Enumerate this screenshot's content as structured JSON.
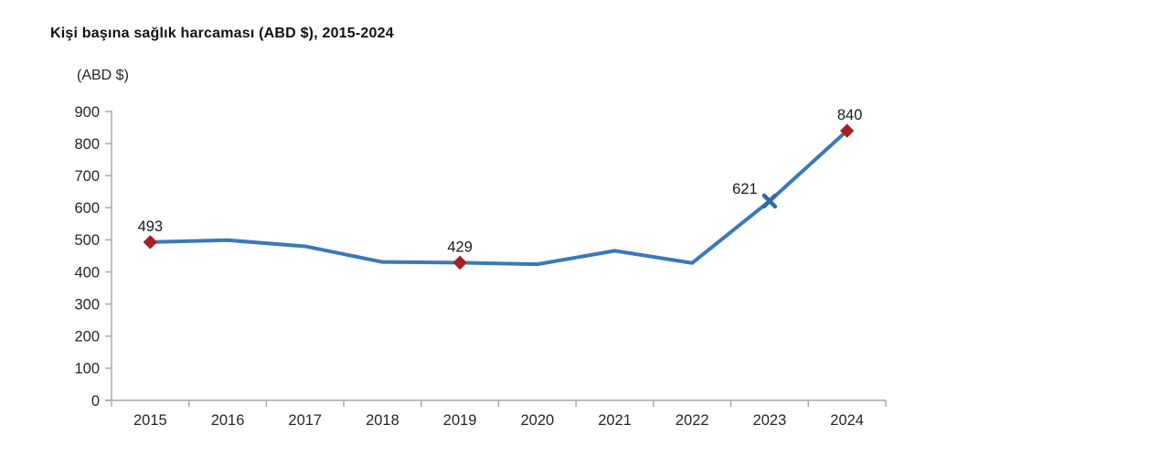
{
  "page": {
    "title": "Kişi başına sağlık harcaması (ABD $), 2015-2024",
    "y_unit_label": "(ABD $)"
  },
  "chart_data": {
    "type": "line",
    "title": "Kişi başına sağlık harcaması (ABD $), 2015-2024",
    "ylabel": "(ABD $)",
    "xlabel": "",
    "categories": [
      "2015",
      "2016",
      "2017",
      "2018",
      "2019",
      "2020",
      "2021",
      "2022",
      "2023",
      "2024"
    ],
    "values": [
      493,
      499,
      480,
      431,
      429,
      424,
      466,
      428,
      621,
      840
    ],
    "labeled_points": [
      {
        "category": "2015",
        "value": 493,
        "marker": "diamond"
      },
      {
        "category": "2019",
        "value": 429,
        "marker": "diamond"
      },
      {
        "category": "2023",
        "value": 621,
        "marker": "x"
      },
      {
        "category": "2024",
        "value": 840,
        "marker": "diamond"
      }
    ],
    "y_ticks": [
      0,
      100,
      200,
      300,
      400,
      500,
      600,
      700,
      800,
      900
    ],
    "ylim": [
      0,
      900
    ],
    "grid": false,
    "legend": "none",
    "colors": {
      "line": "#3a79b8",
      "diamond_marker": "#a62123",
      "x_marker": "#2f6aa3",
      "axis": "#a6a6a6",
      "tick_text": "#262626",
      "data_label_text": "#1a1a1a"
    }
  }
}
